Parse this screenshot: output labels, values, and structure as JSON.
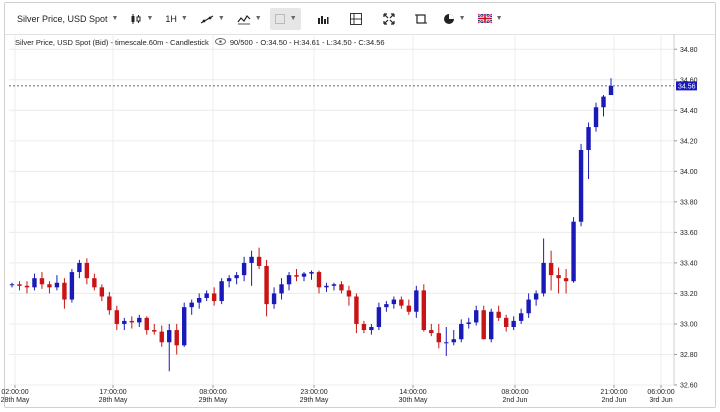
{
  "toolbar": {
    "symbol": "Silver Price, USD Spot",
    "timeframe": "1H"
  },
  "info": {
    "title": "Silver Price, USD Spot (Bid) - timescale.60m - Candlestick",
    "count": "90/500",
    "ohlc": "- O:34.50 - H:34.61 - L:34.50 - C:34.56"
  },
  "last_price_label": "34.56",
  "colors": {
    "up": "#1a1ab8",
    "down": "#c81414",
    "tag": "#1a1ab8"
  },
  "chart_data": {
    "type": "candlestick",
    "y_range": [
      32.6,
      34.9
    ],
    "y_ticks": [
      "32.60",
      "32.80",
      "33.00",
      "33.20",
      "33.40",
      "33.60",
      "33.80",
      "34.00",
      "34.20",
      "34.40",
      "34.60",
      "34.80"
    ],
    "x_ticks": [
      {
        "time": "02:00:00",
        "date": "28th May"
      },
      {
        "time": "17:00:00",
        "date": "28th May"
      },
      {
        "time": "08:00:00",
        "date": "29th May"
      },
      {
        "time": "23:00:00",
        "date": "29th May"
      },
      {
        "time": "14:00:00",
        "date": "30th May"
      },
      {
        "time": "08:00:00",
        "date": "2nd Jun"
      },
      {
        "time": "21:00:00",
        "date": "2nd Jun"
      },
      {
        "time": "06:00:00",
        "date": "3rd Jun"
      }
    ],
    "last_close": 34.56,
    "candles": [
      [
        33.26,
        33.27,
        33.24,
        33.26
      ],
      [
        33.26,
        33.28,
        33.22,
        33.25
      ],
      [
        33.25,
        33.28,
        33.2,
        33.24
      ],
      [
        33.24,
        33.33,
        33.22,
        33.3
      ],
      [
        33.3,
        33.34,
        33.23,
        33.26
      ],
      [
        33.26,
        33.28,
        33.2,
        33.24
      ],
      [
        33.24,
        33.32,
        33.22,
        33.27
      ],
      [
        33.27,
        33.3,
        33.1,
        33.16
      ],
      [
        33.16,
        33.36,
        33.14,
        33.34
      ],
      [
        33.34,
        33.42,
        33.3,
        33.4
      ],
      [
        33.4,
        33.43,
        33.26,
        33.3
      ],
      [
        33.3,
        33.33,
        33.22,
        33.24
      ],
      [
        33.24,
        33.26,
        33.15,
        33.18
      ],
      [
        33.18,
        33.21,
        33.06,
        33.09
      ],
      [
        33.09,
        33.12,
        32.96,
        33.0
      ],
      [
        33.0,
        33.04,
        32.96,
        33.02
      ],
      [
        33.02,
        33.05,
        32.97,
        33.01
      ],
      [
        33.01,
        33.06,
        32.98,
        33.04
      ],
      [
        33.04,
        33.05,
        32.93,
        32.96
      ],
      [
        32.96,
        33.0,
        32.93,
        32.95
      ],
      [
        32.95,
        32.99,
        32.85,
        32.88
      ],
      [
        32.88,
        33.0,
        32.69,
        32.96
      ],
      [
        32.96,
        33.0,
        32.8,
        32.86
      ],
      [
        32.86,
        33.14,
        32.85,
        33.11
      ],
      [
        33.11,
        33.16,
        33.06,
        33.14
      ],
      [
        33.14,
        33.2,
        33.1,
        33.17
      ],
      [
        33.17,
        33.22,
        33.15,
        33.2
      ],
      [
        33.2,
        33.24,
        33.12,
        33.15
      ],
      [
        33.15,
        33.3,
        33.13,
        33.28
      ],
      [
        33.28,
        33.32,
        33.24,
        33.3
      ],
      [
        33.3,
        33.34,
        33.26,
        33.32
      ],
      [
        33.32,
        33.44,
        33.28,
        33.4
      ],
      [
        33.4,
        33.48,
        33.25,
        33.44
      ],
      [
        33.44,
        33.5,
        33.36,
        33.38
      ],
      [
        33.38,
        33.42,
        33.05,
        33.13
      ],
      [
        33.13,
        33.24,
        33.1,
        33.2
      ],
      [
        33.2,
        33.3,
        33.16,
        33.26
      ],
      [
        33.26,
        33.34,
        33.22,
        33.32
      ],
      [
        33.32,
        33.36,
        33.28,
        33.31
      ],
      [
        33.31,
        33.34,
        33.28,
        33.33
      ],
      [
        33.33,
        33.35,
        33.29,
        33.34
      ],
      [
        33.34,
        33.35,
        33.2,
        33.24
      ],
      [
        33.24,
        33.27,
        33.21,
        33.25
      ],
      [
        33.25,
        33.27,
        33.22,
        33.26
      ],
      [
        33.26,
        33.28,
        33.2,
        33.22
      ],
      [
        33.22,
        33.25,
        33.12,
        33.18
      ],
      [
        33.18,
        33.2,
        32.94,
        33.0
      ],
      [
        33.0,
        33.02,
        32.94,
        32.96
      ],
      [
        32.96,
        33.0,
        32.93,
        32.98
      ],
      [
        32.98,
        33.14,
        32.96,
        33.11
      ],
      [
        33.11,
        33.15,
        33.08,
        33.13
      ],
      [
        33.13,
        33.18,
        33.1,
        33.16
      ],
      [
        33.16,
        33.18,
        33.1,
        33.12
      ],
      [
        33.12,
        33.16,
        33.06,
        33.08
      ],
      [
        33.08,
        33.25,
        33.04,
        33.22
      ],
      [
        33.22,
        33.26,
        32.95,
        32.96
      ],
      [
        32.96,
        33.0,
        32.92,
        32.94
      ],
      [
        32.94,
        33.0,
        32.84,
        32.88
      ],
      [
        32.88,
        32.98,
        32.79,
        32.88
      ],
      [
        32.88,
        32.96,
        32.86,
        32.9
      ],
      [
        32.9,
        33.03,
        32.88,
        33.0
      ],
      [
        33.0,
        33.04,
        32.97,
        33.01
      ],
      [
        33.01,
        33.12,
        32.99,
        33.09
      ],
      [
        33.09,
        33.12,
        32.9,
        32.9
      ],
      [
        32.9,
        33.1,
        32.88,
        33.08
      ],
      [
        33.08,
        33.12,
        33.02,
        33.04
      ],
      [
        33.04,
        33.06,
        32.95,
        32.98
      ],
      [
        32.98,
        33.05,
        32.96,
        33.02
      ],
      [
        33.02,
        33.1,
        33.0,
        33.07
      ],
      [
        33.07,
        33.2,
        33.04,
        33.16
      ],
      [
        33.16,
        33.22,
        33.12,
        33.2
      ],
      [
        33.2,
        33.56,
        33.18,
        33.4
      ],
      [
        33.4,
        33.48,
        33.22,
        33.32
      ],
      [
        33.32,
        33.37,
        33.2,
        33.3
      ],
      [
        33.3,
        33.36,
        33.2,
        33.28
      ],
      [
        33.28,
        33.7,
        33.27,
        33.67
      ],
      [
        33.67,
        34.18,
        33.64,
        34.14
      ],
      [
        34.14,
        34.32,
        33.95,
        34.29
      ],
      [
        34.29,
        34.45,
        34.26,
        34.42
      ],
      [
        34.42,
        34.5,
        34.36,
        34.49
      ],
      [
        34.5,
        34.61,
        34.5,
        34.56
      ]
    ]
  }
}
